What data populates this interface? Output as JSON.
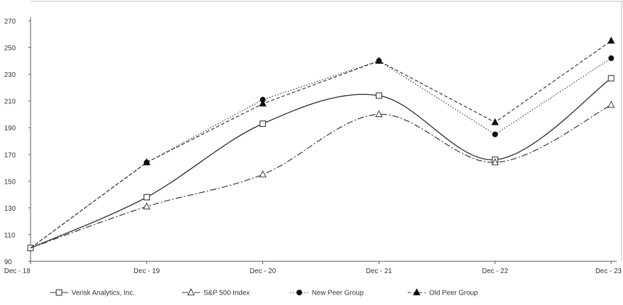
{
  "chart_data": {
    "type": "line",
    "title": "",
    "xlabel": "",
    "ylabel": "",
    "categories": [
      "Dec - 18",
      "Dec - 19",
      "Dec - 20",
      "Dec - 21",
      "Dec - 22",
      "Dec - 23"
    ],
    "y_ticks": [
      "90",
      "110",
      "130",
      "150",
      "170",
      "190",
      "210",
      "230",
      "250",
      "270"
    ],
    "y_tick_values": [
      90,
      110,
      130,
      150,
      170,
      190,
      210,
      230,
      250,
      270
    ],
    "ylim": [
      90,
      270
    ],
    "grid": false,
    "legend_position": "bottom",
    "series": [
      {
        "name": "Verisk Analytics, Inc.",
        "values": [
          100,
          138,
          193,
          214,
          166,
          227
        ],
        "marker": "open-square",
        "line_style": "solid",
        "color": "#333333",
        "smooth": true
      },
      {
        "name": "S&P 500 Index",
        "values": [
          100,
          131,
          155,
          200,
          164,
          207
        ],
        "marker": "open-triangle",
        "line_style": "dashdot",
        "color": "#333333",
        "smooth": true
      },
      {
        "name": "New Peer Group",
        "values": [
          100,
          164,
          211,
          240,
          185,
          242
        ],
        "marker": "filled-circle",
        "line_style": "dotted",
        "color": "#333333",
        "smooth": false
      },
      {
        "name": "Old Peer Group",
        "values": [
          100,
          164,
          208,
          240,
          194,
          255
        ],
        "marker": "filled-triangle",
        "line_style": "dashed",
        "color": "#333333",
        "smooth": false
      }
    ]
  }
}
